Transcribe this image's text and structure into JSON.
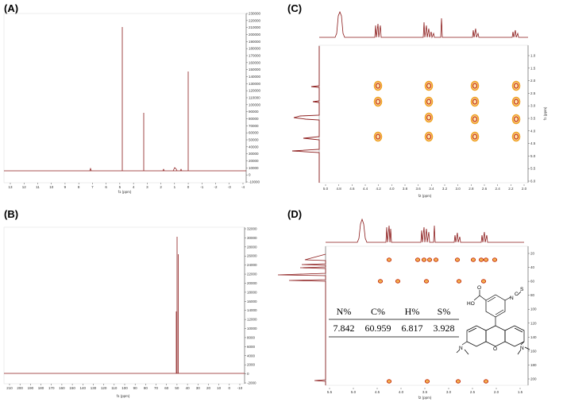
{
  "panels": {
    "A": {
      "label": "(A)",
      "x_axis_title": "f1 (ppm)",
      "x_ticks": [
        "13",
        "12",
        "11",
        "10",
        "9",
        "8",
        "7",
        "6",
        "5",
        "4",
        "3",
        "2",
        "1",
        "0",
        "-1",
        "-2",
        "-3",
        "-4"
      ],
      "y_ticks": [
        "230000",
        "220000",
        "210000",
        "200000",
        "190000",
        "180000",
        "170000",
        "160000",
        "150000",
        "140000",
        "130000",
        "120000",
        "110000",
        "100000",
        "90000",
        "80000",
        "70000",
        "60000",
        "50000",
        "40000",
        "30000",
        "20000",
        "10000",
        "0",
        "-10000"
      ]
    },
    "B": {
      "label": "(B)",
      "x_axis_title": "f1 (ppm)",
      "x_ticks": [
        "210",
        "200",
        "190",
        "180",
        "170",
        "160",
        "150",
        "140",
        "130",
        "120",
        "110",
        "100",
        "90",
        "80",
        "70",
        "60",
        "50",
        "40",
        "30",
        "20",
        "10",
        "0",
        "-10"
      ],
      "y_ticks": [
        "32000",
        "30000",
        "28000",
        "26000",
        "24000",
        "22000",
        "20000",
        "18000",
        "16000",
        "14000",
        "12000",
        "10000",
        "8000",
        "6000",
        "4000",
        "2000",
        "0",
        "-2000"
      ]
    },
    "C": {
      "label": "(C)",
      "x_axis_title": "f2 (ppm)",
      "y_axis_title": "f1 (ppm)",
      "x_ticks": [
        "5.0",
        "4.8",
        "4.6",
        "4.4",
        "4.2",
        "4.0",
        "3.8",
        "3.6",
        "3.4",
        "3.2",
        "3.0",
        "2.8",
        "2.6",
        "2.4",
        "2.2",
        "2.0"
      ],
      "y_ticks": [
        "1.0",
        "1.5",
        "2.0",
        "2.5",
        "3.0",
        "3.5",
        "4.0",
        "4.5",
        "5.0",
        "5.5",
        "6.0"
      ]
    },
    "D": {
      "label": "(D)",
      "x_axis_title": "f2 (ppm)",
      "x_ticks": [
        "5.5",
        "5.0",
        "4.5",
        "4.0",
        "3.5",
        "3.0",
        "2.5",
        "2.0",
        "1.5"
      ],
      "y_ticks": [
        "20",
        "40",
        "60",
        "80",
        "100",
        "120",
        "140",
        "160",
        "180",
        "200"
      ],
      "table": {
        "headers": [
          "N%",
          "C%",
          "H%",
          "S%"
        ],
        "values": [
          "7.842",
          "60.959",
          "6.817",
          "3.928"
        ]
      },
      "structure_labels": {
        "ho": "HO",
        "o_carbonyl": "O",
        "n_iso": "N",
        "c_iso": "C",
        "s_iso": "S",
        "n_left": "N",
        "o_ring": "O",
        "n_right": "N"
      }
    }
  },
  "colors": {
    "spectrum": "#8b1a1a",
    "contour_outer": "#f0a020",
    "contour_inner": "#c83210",
    "axis": "#555555"
  }
}
